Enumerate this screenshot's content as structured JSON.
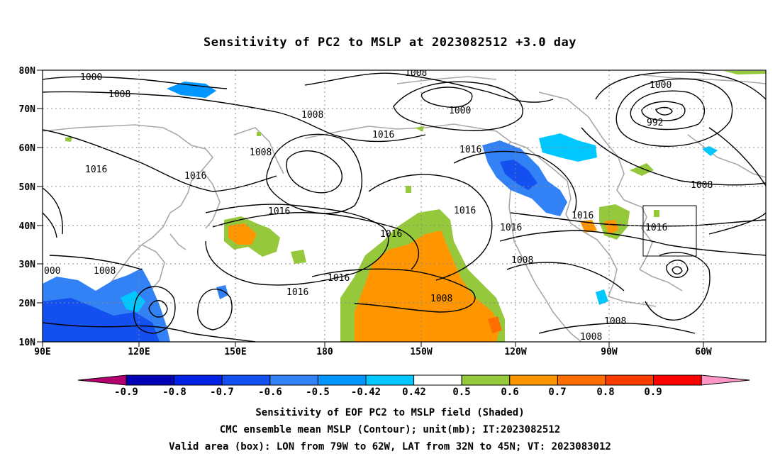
{
  "title": "Sensitivity of PC2 to MSLP at 2023082512 +3.0 day",
  "map": {
    "lat_labels": [
      "80N",
      "70N",
      "60N",
      "50N",
      "40N",
      "30N",
      "20N",
      "10N"
    ],
    "lon_labels": [
      "90E",
      "120E",
      "150E",
      "180",
      "150W",
      "120W",
      "90W",
      "60W"
    ],
    "valid_box": {
      "lon_from": "79W",
      "lon_to": "62W",
      "lat_from": "32N",
      "lat_to": "45N"
    },
    "contour_labels": [
      "1000",
      "1008",
      "1008",
      "1008",
      "1016",
      "1016",
      "1016",
      "1016",
      "1016",
      "1016",
      "1016",
      "1016",
      "1016",
      "1016",
      "1016",
      "1008",
      "1008",
      "1008",
      "1008",
      "1000",
      "1000",
      "992",
      "1008",
      "1008",
      "000"
    ]
  },
  "colorbar": {
    "colors": [
      "#b4006e",
      "#0000b4",
      "#0022e6",
      "#1450f0",
      "#3282f5",
      "#0096ff",
      "#00c8ff",
      "#ffffff",
      "#96c83c",
      "#ff9600",
      "#ff6e00",
      "#ff3c00",
      "#ff0000",
      "#ff96c8"
    ],
    "tick_labels": [
      "-0.9",
      "-0.8",
      "-0.7",
      "-0.6",
      "-0.5",
      "-0.42",
      "0.42",
      "0.5",
      "0.6",
      "0.7",
      "0.8",
      "0.9"
    ]
  },
  "captions": {
    "line1": "Sensitivity of EOF PC2 to MSLP field (Shaded)",
    "line2": "CMC ensemble mean MSLP (Contour); unit(mb); IT:2023082512",
    "line3": "Valid area (box): LON from 79W to 62W, LAT from 32N to 45N; VT: 2023083012"
  }
}
